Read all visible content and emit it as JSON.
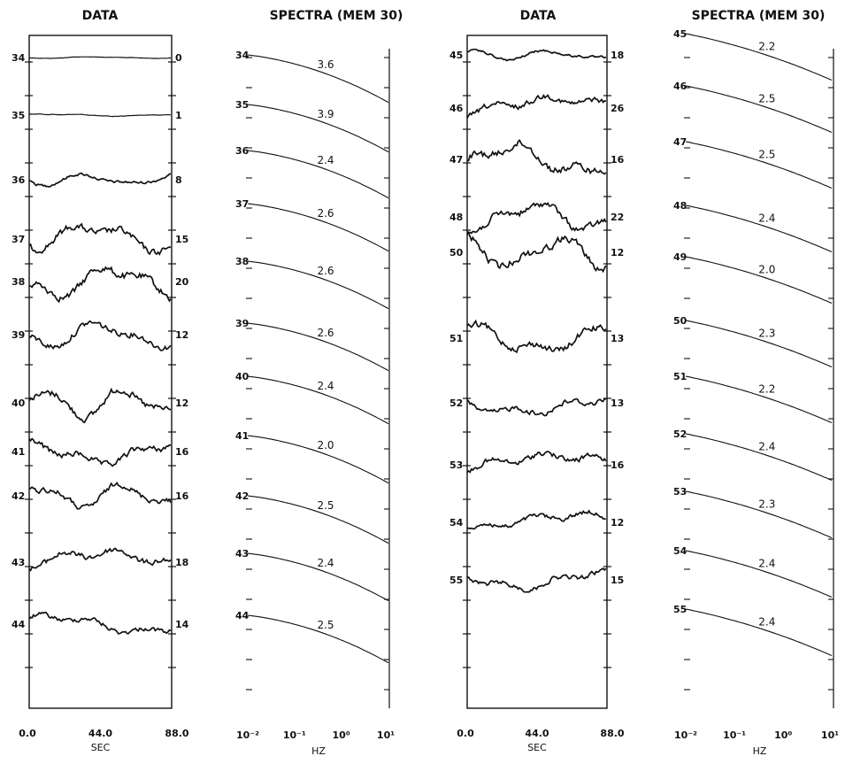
{
  "chart_data": [
    {
      "type": "line",
      "title": "DATA",
      "xlabel": "SEC",
      "x_ticks": [
        "0.0",
        "44.0",
        "88.0"
      ],
      "left_labels": [
        "34",
        "35",
        "36",
        "37",
        "38",
        "39",
        "40",
        "41",
        "42",
        "43",
        "44"
      ],
      "right_labels": [
        "0",
        "1",
        "8",
        "15",
        "20",
        "12",
        "12",
        "16",
        "16",
        "18",
        "14"
      ]
    },
    {
      "type": "line",
      "title": "SPECTRA (MEM 30)",
      "xlabel": "HZ",
      "x_ticks": [
        "10⁻²",
        "10⁻¹",
        "10⁰",
        "10¹"
      ],
      "log_x": true,
      "series": [
        {
          "name": "34",
          "value": "3.6"
        },
        {
          "name": "35",
          "value": "3.9"
        },
        {
          "name": "36",
          "value": "2.4"
        },
        {
          "name": "37",
          "value": "2.6"
        },
        {
          "name": "38",
          "value": "2.6"
        },
        {
          "name": "39",
          "value": "2.6"
        },
        {
          "name": "40",
          "value": "2.4"
        },
        {
          "name": "41",
          "value": "2.0"
        },
        {
          "name": "42",
          "value": "2.5"
        },
        {
          "name": "43",
          "value": "2.4"
        },
        {
          "name": "44",
          "value": "2.5"
        }
      ]
    },
    {
      "type": "line",
      "title": "DATA",
      "xlabel": "SEC",
      "x_ticks": [
        "0.0",
        "44.0",
        "88.0"
      ],
      "left_labels": [
        "45",
        "46",
        "47",
        "48",
        "50",
        "51",
        "52",
        "53",
        "54",
        "55"
      ],
      "right_labels": [
        "18",
        "26",
        "16",
        "22",
        "12",
        "13",
        "13",
        "16",
        "12",
        "15"
      ]
    },
    {
      "type": "line",
      "title": "SPECTRA (MEM 30)",
      "xlabel": "HZ",
      "x_ticks": [
        "10⁻²",
        "10⁻¹",
        "10⁰",
        "10¹"
      ],
      "log_x": true,
      "series": [
        {
          "name": "45",
          "value": "2.2"
        },
        {
          "name": "46",
          "value": "2.5"
        },
        {
          "name": "47",
          "value": "2.5"
        },
        {
          "name": "48",
          "value": "2.4"
        },
        {
          "name": "49",
          "value": "2.0"
        },
        {
          "name": "50",
          "value": "2.3"
        },
        {
          "name": "51",
          "value": "2.2"
        },
        {
          "name": "52",
          "value": "2.4"
        },
        {
          "name": "53",
          "value": "2.3"
        },
        {
          "name": "54",
          "value": "2.4"
        },
        {
          "name": "55",
          "value": "2.4"
        }
      ]
    }
  ]
}
